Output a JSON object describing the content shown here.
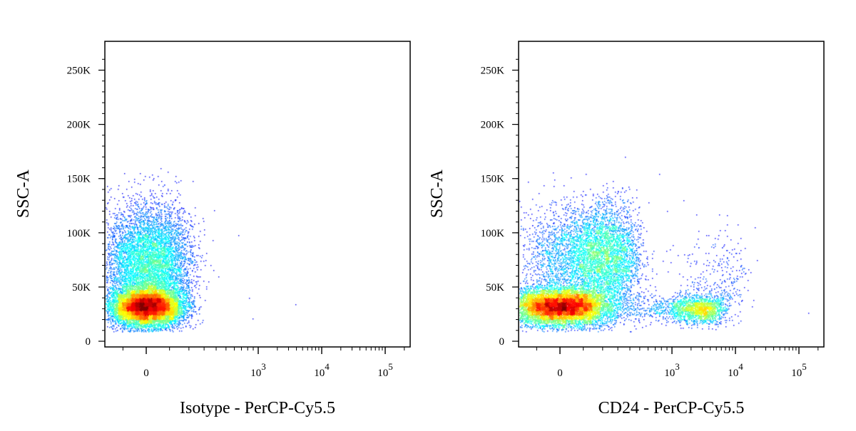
{
  "chart_data": [
    {
      "type": "scatter",
      "title": "",
      "xlabel": "Isotype - PerCP-Cy5.5",
      "ylabel": "SSC-A",
      "xscale": "biexponential",
      "yscale": "linear",
      "ylim": [
        0,
        262144
      ],
      "y_ticks": [
        {
          "value": 0,
          "label": "0"
        },
        {
          "value": 50000,
          "label": "50K"
        },
        {
          "value": 100000,
          "label": "100K"
        },
        {
          "value": 150000,
          "label": "150K"
        },
        {
          "value": 200000,
          "label": "200K"
        },
        {
          "value": 250000,
          "label": "250K"
        }
      ],
      "x_ticks": [
        {
          "value": 0,
          "base": "0",
          "exp": ""
        },
        {
          "value": 1000,
          "base": "10",
          "exp": "3"
        },
        {
          "value": 10000,
          "base": "10",
          "exp": "4"
        },
        {
          "value": 100000,
          "base": "10",
          "exp": "5"
        }
      ],
      "grid": false,
      "color_mode": "density pseudocolor (blue low → red high)",
      "populations": [
        {
          "n": 9000,
          "x_center": 0,
          "x_spread": 80,
          "y_center": 32000,
          "y_spread": 9000
        },
        {
          "n": 6500,
          "x_center": 10,
          "x_spread": 95,
          "y_center": 72000,
          "y_spread": 26000
        }
      ],
      "outliers": [
        {
          "x": 180,
          "y": 95000
        },
        {
          "x": 230,
          "y": 78000
        },
        {
          "x": 260,
          "y": 60000
        },
        {
          "x": 300,
          "y": 103000
        },
        {
          "x": 330,
          "y": 55000
        },
        {
          "x": 420,
          "y": 60000
        },
        {
          "x": 650,
          "y": 98000
        },
        {
          "x": 820,
          "y": 40000
        },
        {
          "x": 880,
          "y": 21000
        },
        {
          "x": 3800,
          "y": 34000
        },
        {
          "x": 210,
          "y": 85000
        },
        {
          "x": 250,
          "y": 45000
        },
        {
          "x": 200,
          "y": 25000
        },
        {
          "x": 350,
          "y": 70000
        }
      ]
    },
    {
      "type": "scatter",
      "title": "",
      "xlabel": "CD24 - PerCP-Cy5.5",
      "ylabel": "SSC-A",
      "xscale": "biexponential",
      "yscale": "linear",
      "ylim": [
        0,
        262144
      ],
      "y_ticks": [
        {
          "value": 0,
          "label": "0"
        },
        {
          "value": 50000,
          "label": "50K"
        },
        {
          "value": 100000,
          "label": "100K"
        },
        {
          "value": 150000,
          "label": "150K"
        },
        {
          "value": 200000,
          "label": "200K"
        },
        {
          "value": 250000,
          "label": "250K"
        }
      ],
      "x_ticks": [
        {
          "value": 0,
          "base": "0",
          "exp": ""
        },
        {
          "value": 1000,
          "base": "10",
          "exp": "3"
        },
        {
          "value": 10000,
          "base": "10",
          "exp": "4"
        },
        {
          "value": 100000,
          "base": "10",
          "exp": "5"
        }
      ],
      "grid": false,
      "color_mode": "density pseudocolor (blue low → red high)",
      "populations": [
        {
          "n": 8000,
          "x_center": 0,
          "x_spread": 110,
          "y_center": 32000,
          "y_spread": 9000
        },
        {
          "n": 5500,
          "x_center": 160,
          "x_spread": 150,
          "y_center": 78000,
          "y_spread": 24000
        },
        {
          "n": 2800,
          "x_center": 1500,
          "x_spread": 2200,
          "y_center": 30000,
          "y_spread": 6500
        },
        {
          "n": 350,
          "x_center": 5000,
          "x_spread": 4500,
          "y_center": 58000,
          "y_spread": 22000
        }
      ],
      "outliers": [
        {
          "x": 140000,
          "y": 26000
        },
        {
          "x": 20000,
          "y": 105000
        },
        {
          "x": 22000,
          "y": 75000
        },
        {
          "x": 1500,
          "y": 130000
        },
        {
          "x": 900,
          "y": 120000
        },
        {
          "x": 3500,
          "y": 98000
        },
        {
          "x": 12000,
          "y": 95000
        },
        {
          "x": 19000,
          "y": 38000
        }
      ]
    }
  ]
}
